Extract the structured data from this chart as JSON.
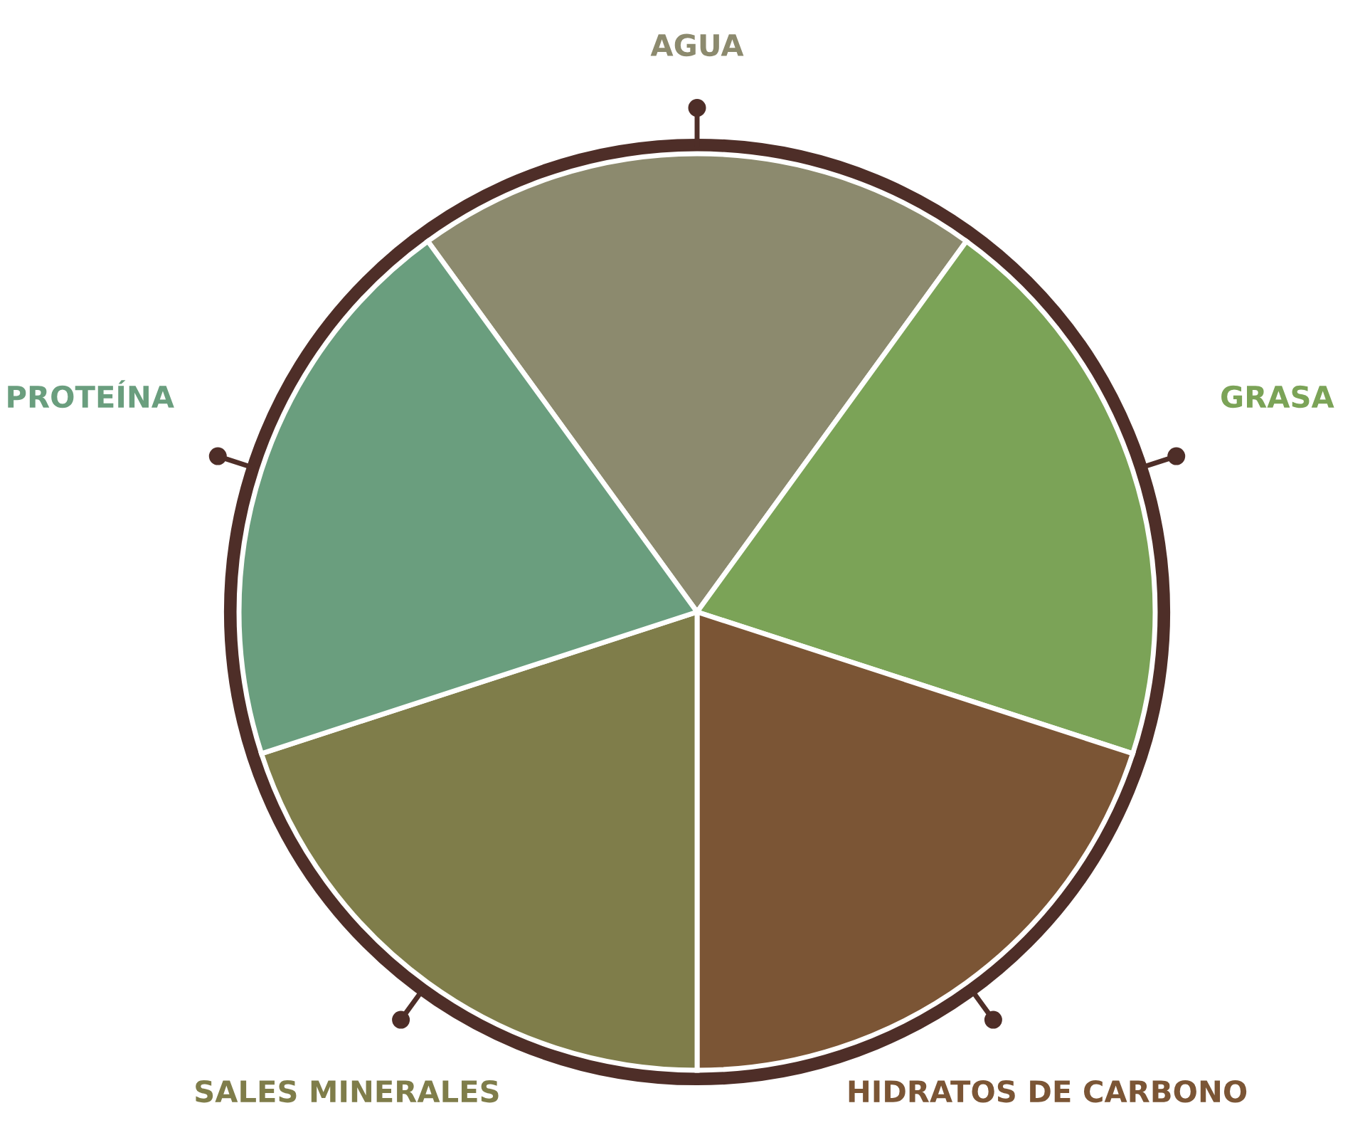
{
  "chart_data": {
    "type": "pie",
    "categories": [
      "AGUA",
      "GRASA",
      "HIDRATOS DE CARBONO",
      "SALES MINERALES",
      "PROTEÍNA"
    ],
    "values": [
      20,
      20,
      20,
      20,
      20
    ],
    "colors": [
      "#8c8a6e",
      "#7ba357",
      "#7b5535",
      "#7f7d4a",
      "#6a9e7e"
    ]
  }
}
